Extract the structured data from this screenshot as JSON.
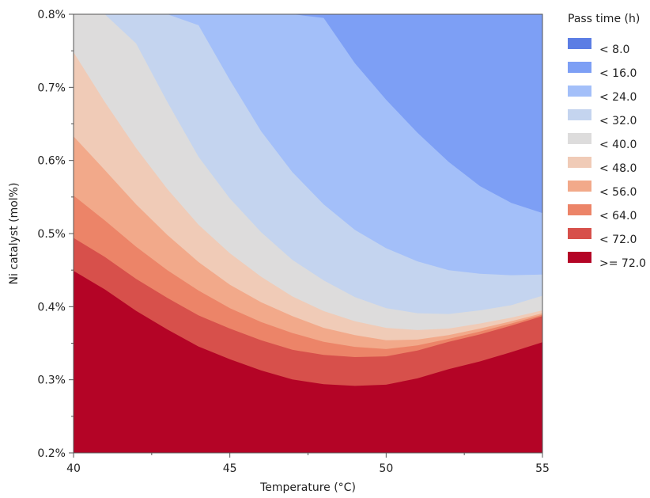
{
  "chart_data": {
    "type": "area",
    "title": "",
    "xlabel": "Temperature (°C)",
    "ylabel": "Ni catalyst (mol%)",
    "xlim": [
      40,
      55
    ],
    "ylim": [
      0.2,
      0.8
    ],
    "x_ticks": [
      40,
      45,
      50,
      55
    ],
    "x_tick_labels": [
      "40",
      "45",
      "50",
      "55"
    ],
    "y_ticks": [
      0.2,
      0.3,
      0.4,
      0.5,
      0.6,
      0.7,
      0.8
    ],
    "y_tick_labels": [
      "0.2%",
      "0.3%",
      "0.4%",
      "0.5%",
      "0.6%",
      "0.7%",
      "0.8%"
    ],
    "grid": false,
    "legend_title": "Pass time (h)",
    "legend_position": "right",
    "x": [
      40,
      41,
      42,
      43,
      44,
      45,
      46,
      47,
      48,
      49,
      50,
      51,
      52,
      53,
      54,
      55
    ],
    "series": [
      {
        "name": "< 72.0",
        "color": "#d7504b",
        "values": [
          0.494,
          0.468,
          0.438,
          0.412,
          0.388,
          0.37,
          0.354,
          0.341,
          0.334,
          0.331,
          0.332,
          0.34,
          0.352,
          0.362,
          0.374,
          0.387
        ]
      },
      {
        "name": "< 64.0",
        "color": "#ec8468",
        "values": [
          0.552,
          0.518,
          0.482,
          0.45,
          0.422,
          0.398,
          0.379,
          0.364,
          0.352,
          0.345,
          0.342,
          0.347,
          0.356,
          0.366,
          0.377,
          0.389
        ]
      },
      {
        "name": "< 56.0",
        "color": "#f2a98a",
        "values": [
          0.633,
          0.587,
          0.54,
          0.498,
          0.461,
          0.43,
          0.406,
          0.387,
          0.371,
          0.361,
          0.354,
          0.355,
          0.361,
          0.37,
          0.38,
          0.391
        ]
      },
      {
        "name": "< 48.0",
        "color": "#f0cbb7",
        "values": [
          0.748,
          0.68,
          0.617,
          0.561,
          0.512,
          0.473,
          0.441,
          0.414,
          0.394,
          0.38,
          0.371,
          0.368,
          0.37,
          0.377,
          0.385,
          0.395
        ]
      },
      {
        "name": "< 40.0",
        "color": "#dddcdc",
        "values": [
          0.8,
          0.8,
          0.76,
          0.68,
          0.605,
          0.548,
          0.502,
          0.464,
          0.436,
          0.413,
          0.398,
          0.391,
          0.39,
          0.395,
          0.402,
          0.415
        ]
      },
      {
        "name": "< 32.0",
        "color": "#c4d4ef",
        "values": [
          0.8,
          0.8,
          0.8,
          0.8,
          0.785,
          0.71,
          0.64,
          0.584,
          0.54,
          0.505,
          0.48,
          0.462,
          0.45,
          0.445,
          0.443,
          0.444
        ]
      },
      {
        "name": "< 24.0",
        "color": "#a3bff9",
        "values": [
          0.8,
          0.8,
          0.8,
          0.8,
          0.8,
          0.8,
          0.8,
          0.8,
          0.795,
          0.733,
          0.683,
          0.638,
          0.598,
          0.565,
          0.542,
          0.528
        ]
      }
    ],
    "base_level": {
      "name": ">= 72.0",
      "color": "#b40426"
    },
    "legend": [
      {
        "label": "< 8.0",
        "color": "#5b7de4"
      },
      {
        "label": "< 16.0",
        "color": "#7d9ff5"
      },
      {
        "label": "< 24.0",
        "color": "#a3bff9"
      },
      {
        "label": "< 32.0",
        "color": "#c4d4ef"
      },
      {
        "label": "< 40.0",
        "color": "#dddcdc"
      },
      {
        "label": "< 48.0",
        "color": "#f0cbb7"
      },
      {
        "label": "< 56.0",
        "color": "#f2a98a"
      },
      {
        "label": "< 64.0",
        "color": "#ec8468"
      },
      {
        "label": "< 72.0",
        "color": "#d7504b"
      },
      {
        "label": ">= 72.0",
        "color": "#b40426"
      }
    ],
    "top_region_color": "#7d9ff5"
  }
}
